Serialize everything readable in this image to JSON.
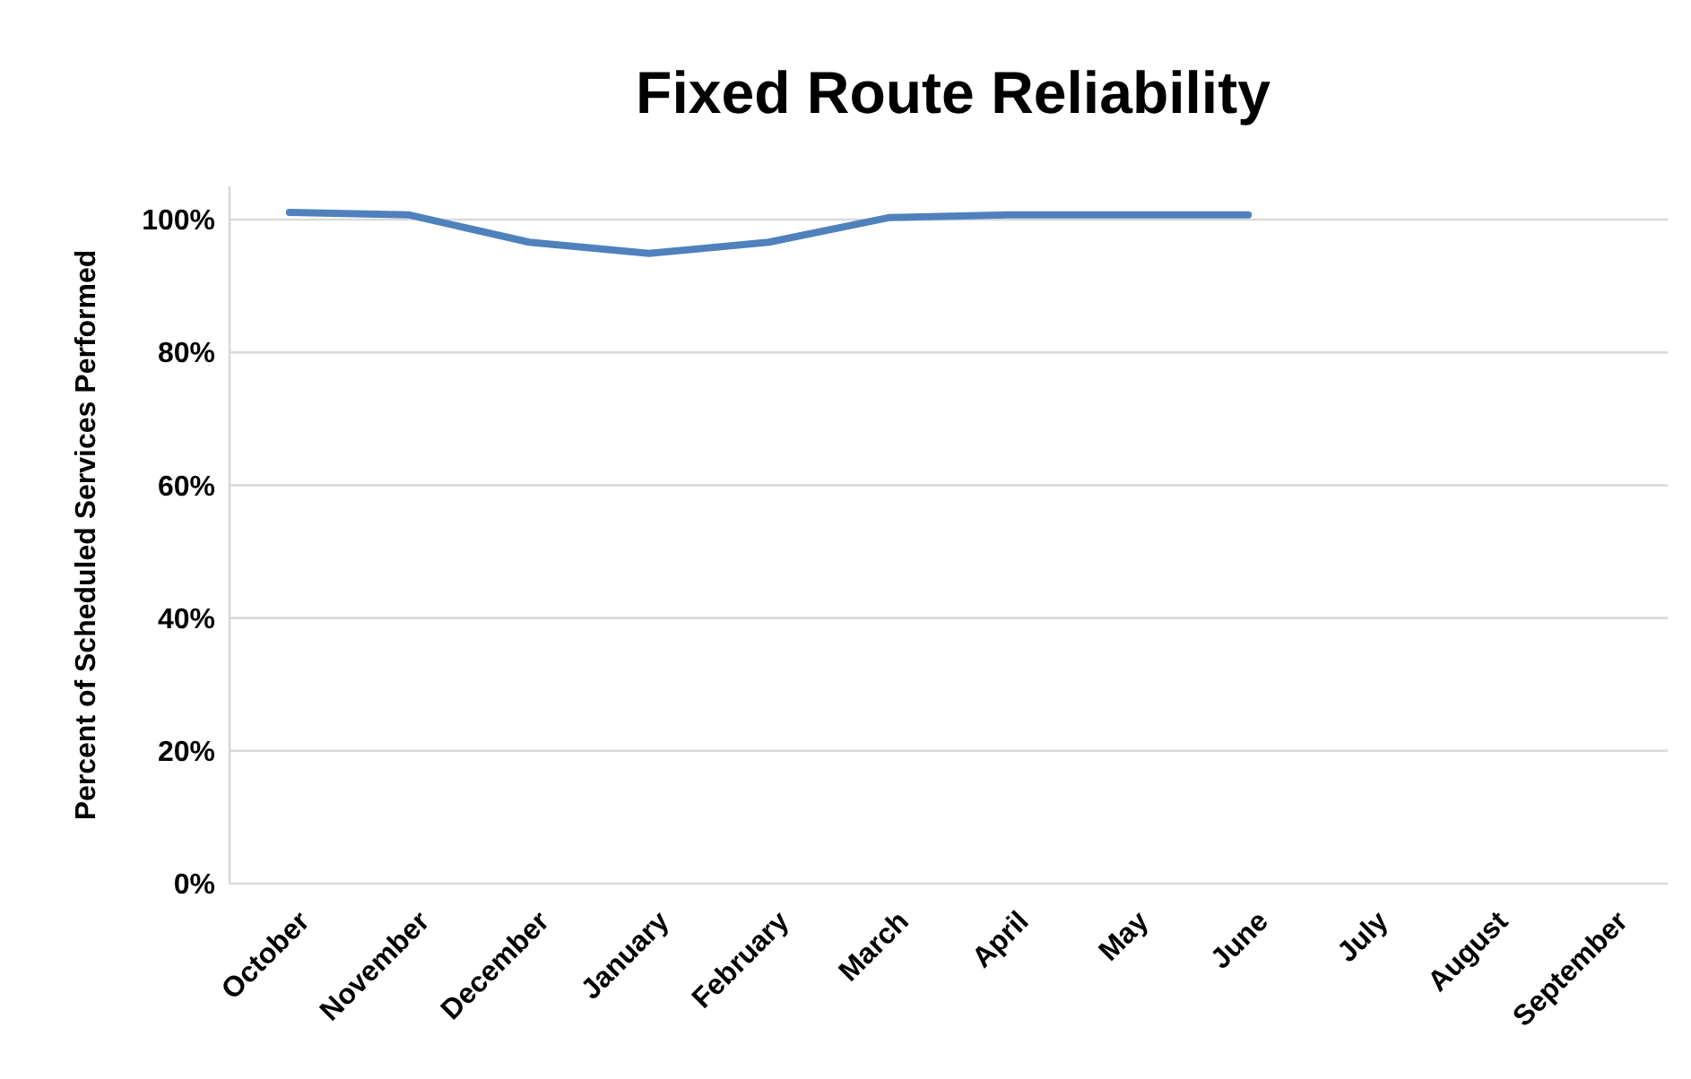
{
  "chart_data": {
    "type": "line",
    "title": "Fixed Route Reliability",
    "ylabel": "Percent of Scheduled Services Performed",
    "categories": [
      "October",
      "November",
      "December",
      "January",
      "February",
      "March",
      "April",
      "May",
      "June",
      "July",
      "August",
      "September"
    ],
    "series": [
      {
        "color": "#4f81bd",
        "values": [
          101.1,
          100.7,
          96.6,
          94.9,
          96.6,
          100.3,
          100.7,
          100.7,
          100.7,
          null,
          null,
          null
        ]
      }
    ],
    "ylim": [
      0,
      105
    ],
    "yticks": [
      {
        "value": 0,
        "label": "0%"
      },
      {
        "value": 20,
        "label": "20%"
      },
      {
        "value": 40,
        "label": "40%"
      },
      {
        "value": 60,
        "label": "60%"
      },
      {
        "value": 80,
        "label": "80%"
      },
      {
        "value": 100,
        "label": "100%"
      }
    ],
    "grid": "y",
    "marker": "none",
    "line_style": "solid"
  }
}
